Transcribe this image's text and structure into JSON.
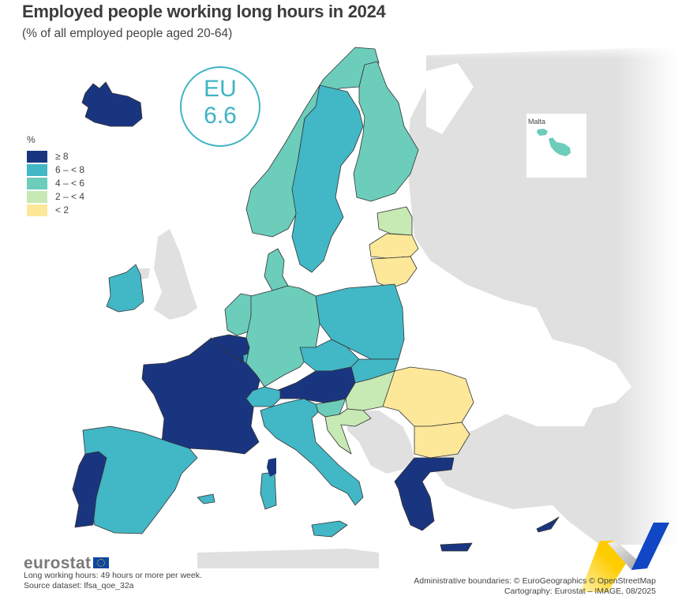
{
  "header": {
    "title": "Employed people working long hours in 2024",
    "subtitle": "(% of all employed people aged 20-64)"
  },
  "eu_badge": {
    "label": "EU",
    "value": "6.6"
  },
  "legend": {
    "unit": "%",
    "classes": [
      {
        "id": "c5",
        "label": "≥ 8",
        "color": "#1a3580"
      },
      {
        "id": "c4",
        "label": "6 – < 8",
        "color": "#42b7c6"
      },
      {
        "id": "c3",
        "label": "4 – < 6",
        "color": "#6ccdbb"
      },
      {
        "id": "c2",
        "label": "2 – < 4",
        "color": "#c7e9b4"
      },
      {
        "id": "c1",
        "label": "< 2",
        "color": "#fde89a"
      }
    ],
    "no_data_color": "#e0e0e0"
  },
  "inset": {
    "label": "Malta",
    "class": "c3"
  },
  "chart_data": {
    "type": "choropleth",
    "title": "Employed people working long hours in 2024",
    "subtitle": "(% of all employed people aged 20-64)",
    "eu_value": 6.6,
    "unit": "%",
    "classes": [
      "≥ 8",
      "6 – < 8",
      "4 – < 6",
      "2 – < 4",
      "< 2"
    ],
    "regions": [
      {
        "name": "Iceland",
        "class": "≥ 8"
      },
      {
        "name": "Norway",
        "class": "4 – < 6"
      },
      {
        "name": "Sweden",
        "class": "6 – < 8"
      },
      {
        "name": "Finland",
        "class": "4 – < 6"
      },
      {
        "name": "Estonia",
        "class": "2 – < 4"
      },
      {
        "name": "Latvia",
        "class": "< 2"
      },
      {
        "name": "Lithuania",
        "class": "< 2"
      },
      {
        "name": "Denmark",
        "class": "4 – < 6"
      },
      {
        "name": "Ireland",
        "class": "6 – < 8"
      },
      {
        "name": "Netherlands",
        "class": "4 – < 6"
      },
      {
        "name": "Belgium",
        "class": "≥ 8"
      },
      {
        "name": "Luxembourg",
        "class": "6 – < 8"
      },
      {
        "name": "France",
        "class": "≥ 8"
      },
      {
        "name": "Germany",
        "class": "4 – < 6"
      },
      {
        "name": "Poland",
        "class": "6 – < 8"
      },
      {
        "name": "Czechia",
        "class": "6 – < 8"
      },
      {
        "name": "Slovakia",
        "class": "6 – < 8"
      },
      {
        "name": "Austria",
        "class": "≥ 8"
      },
      {
        "name": "Switzerland",
        "class": "6 – < 8"
      },
      {
        "name": "Hungary",
        "class": "2 – < 4"
      },
      {
        "name": "Slovenia",
        "class": "4 – < 6"
      },
      {
        "name": "Croatia",
        "class": "2 – < 4"
      },
      {
        "name": "Romania",
        "class": "< 2"
      },
      {
        "name": "Bulgaria",
        "class": "< 2"
      },
      {
        "name": "Greece",
        "class": "≥ 8"
      },
      {
        "name": "Cyprus",
        "class": "≥ 8"
      },
      {
        "name": "Italy",
        "class": "6 – < 8"
      },
      {
        "name": "Spain",
        "class": "6 – < 8"
      },
      {
        "name": "Portugal",
        "class": "≥ 8"
      },
      {
        "name": "Malta",
        "class": "4 – < 6"
      }
    ]
  },
  "footer": {
    "logo_text": "eurostat",
    "note": "Long working hours: 49 hours or more per week.",
    "source": "Source dataset: lfsa_qoe_32a",
    "boundaries": "Administrative boundaries: © EuroGeographics © OpenStreetMap",
    "cartography": "Cartography: Eurostat – IMAGE, 08/2025"
  }
}
